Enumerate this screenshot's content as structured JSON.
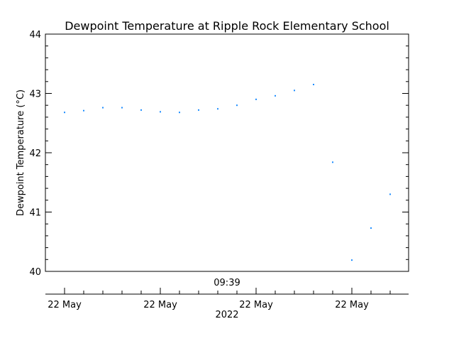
{
  "chart_data": {
    "type": "scatter",
    "title": "Dewpoint Temperature at Ripple Rock Elementary School",
    "ylabel": "Dewpoint Temperature (°C)",
    "ylim": [
      40,
      44
    ],
    "yticks": [
      "40",
      "41",
      "42",
      "43",
      "44"
    ],
    "time_label": "09:39",
    "xtick_labels": [
      "22 May",
      "22 May",
      "22 May",
      "22 May"
    ],
    "year_label": "2022",
    "point_color": "#1a8cff",
    "values": [
      42.68,
      42.71,
      42.76,
      42.76,
      42.72,
      42.69,
      42.68,
      42.72,
      42.74,
      42.8,
      42.9,
      42.96,
      43.05,
      43.15,
      41.84,
      40.19,
      40.73,
      41.3
    ]
  }
}
